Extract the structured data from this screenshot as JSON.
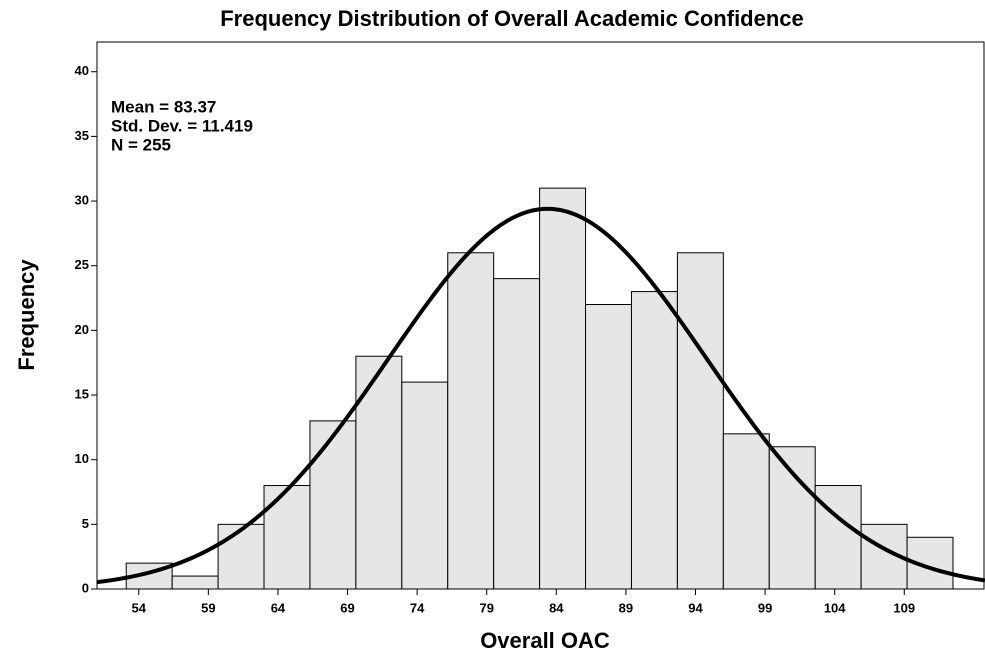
{
  "chart_data": {
    "type": "histogram",
    "title": "Frequency Distribution of Overall Academic Confidence",
    "x_label": "Overall OAC",
    "y_label": "Frequency",
    "bins": [
      53.1,
      56.4,
      59.7,
      63.0,
      66.3,
      69.6,
      72.9,
      76.2,
      79.5,
      82.8,
      86.1,
      89.4,
      92.7,
      96.0,
      99.3,
      102.6,
      105.9,
      109.2,
      112.5
    ],
    "values": [
      2,
      1,
      5,
      8,
      13,
      18,
      16,
      26,
      24,
      31,
      22,
      23,
      26,
      12,
      11,
      8,
      5,
      4
    ],
    "color": "#e6e6e6",
    "xlim": [
      51,
      114.8
    ],
    "xticks": [
      54,
      59,
      64,
      69,
      74,
      79,
      84,
      89,
      94,
      99,
      104,
      109
    ],
    "ylim": [
      0,
      42.3
    ],
    "yticks": [
      0,
      5,
      10,
      15,
      20,
      25,
      30,
      35,
      40
    ],
    "grid": false,
    "annotations": [
      "Mean = 83.37",
      "Std. Dev. = 11.419",
      "N = 255"
    ],
    "normal_curve": {
      "mean": 83.37,
      "sd": 11.419,
      "n": 255
    }
  }
}
